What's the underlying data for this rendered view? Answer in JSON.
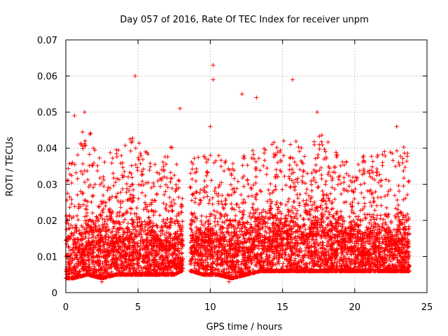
{
  "chart_data": {
    "type": "scatter",
    "title": "Day 057 of 2016, Rate Of TEC Index for receiver unpm",
    "xlabel": "GPS time / hours",
    "ylabel": "ROTI / TECUs",
    "xlim": [
      0,
      25
    ],
    "ylim": [
      0,
      0.07
    ],
    "xticks": [
      0,
      5,
      10,
      15,
      20,
      25
    ],
    "yticks": [
      0,
      0.01,
      0.02,
      0.03,
      0.04,
      0.05,
      0.06,
      0.07
    ],
    "xtick_labels": [
      "0",
      "5",
      "10",
      "15",
      "20",
      "25"
    ],
    "ytick_labels": [
      "0",
      "0.01",
      "0.02",
      "0.03",
      "0.04",
      "0.05",
      "0.06",
      "0.07"
    ],
    "grid": true,
    "marker": "+",
    "color": "#ff0000",
    "data_gaps_hours": [
      [
        8.1,
        8.6
      ]
    ],
    "notable_points": [
      {
        "x": 4.8,
        "y": 0.06
      },
      {
        "x": 10.2,
        "y": 0.063
      },
      {
        "x": 10.2,
        "y": 0.059
      },
      {
        "x": 15.7,
        "y": 0.059
      },
      {
        "x": 12.2,
        "y": 0.055
      },
      {
        "x": 13.2,
        "y": 0.054
      },
      {
        "x": 7.9,
        "y": 0.051
      },
      {
        "x": 1.3,
        "y": 0.05
      },
      {
        "x": 17.4,
        "y": 0.05
      },
      {
        "x": 0.6,
        "y": 0.049
      },
      {
        "x": 10.0,
        "y": 0.046
      },
      {
        "x": 22.9,
        "y": 0.046
      },
      {
        "x": 11.3,
        "y": 0.003
      },
      {
        "x": 2.5,
        "y": 0.003
      }
    ],
    "envelope": [
      {
        "x": 0.0,
        "low": 0.004,
        "mid": 0.012,
        "high": 0.035
      },
      {
        "x": 0.5,
        "low": 0.004,
        "mid": 0.012,
        "high": 0.04
      },
      {
        "x": 1.5,
        "low": 0.005,
        "mid": 0.013,
        "high": 0.047
      },
      {
        "x": 2.5,
        "low": 0.004,
        "mid": 0.013,
        "high": 0.038
      },
      {
        "x": 3.5,
        "low": 0.005,
        "mid": 0.014,
        "high": 0.04
      },
      {
        "x": 4.5,
        "low": 0.005,
        "mid": 0.014,
        "high": 0.044
      },
      {
        "x": 5.5,
        "low": 0.005,
        "mid": 0.013,
        "high": 0.04
      },
      {
        "x": 6.5,
        "low": 0.005,
        "mid": 0.013,
        "high": 0.035
      },
      {
        "x": 7.5,
        "low": 0.005,
        "mid": 0.013,
        "high": 0.042
      },
      {
        "x": 8.0,
        "low": 0.006,
        "mid": 0.013,
        "high": 0.03
      },
      {
        "x": 8.7,
        "low": 0.006,
        "mid": 0.014,
        "high": 0.037
      },
      {
        "x": 9.5,
        "low": 0.005,
        "mid": 0.014,
        "high": 0.038
      },
      {
        "x": 10.5,
        "low": 0.005,
        "mid": 0.014,
        "high": 0.04
      },
      {
        "x": 11.5,
        "low": 0.004,
        "mid": 0.012,
        "high": 0.036
      },
      {
        "x": 12.5,
        "low": 0.005,
        "mid": 0.014,
        "high": 0.04
      },
      {
        "x": 13.5,
        "low": 0.006,
        "mid": 0.014,
        "high": 0.04
      },
      {
        "x": 14.5,
        "low": 0.006,
        "mid": 0.016,
        "high": 0.042
      },
      {
        "x": 15.5,
        "low": 0.006,
        "mid": 0.016,
        "high": 0.044
      },
      {
        "x": 16.5,
        "low": 0.006,
        "mid": 0.015,
        "high": 0.04
      },
      {
        "x": 17.5,
        "low": 0.006,
        "mid": 0.016,
        "high": 0.045
      },
      {
        "x": 18.5,
        "low": 0.006,
        "mid": 0.015,
        "high": 0.04
      },
      {
        "x": 19.5,
        "low": 0.006,
        "mid": 0.014,
        "high": 0.036
      },
      {
        "x": 20.5,
        "low": 0.006,
        "mid": 0.014,
        "high": 0.038
      },
      {
        "x": 21.5,
        "low": 0.006,
        "mid": 0.014,
        "high": 0.038
      },
      {
        "x": 22.5,
        "low": 0.006,
        "mid": 0.014,
        "high": 0.04
      },
      {
        "x": 23.5,
        "low": 0.006,
        "mid": 0.014,
        "high": 0.042
      },
      {
        "x": 23.8,
        "low": 0.006,
        "mid": 0.013,
        "high": 0.038
      }
    ]
  }
}
